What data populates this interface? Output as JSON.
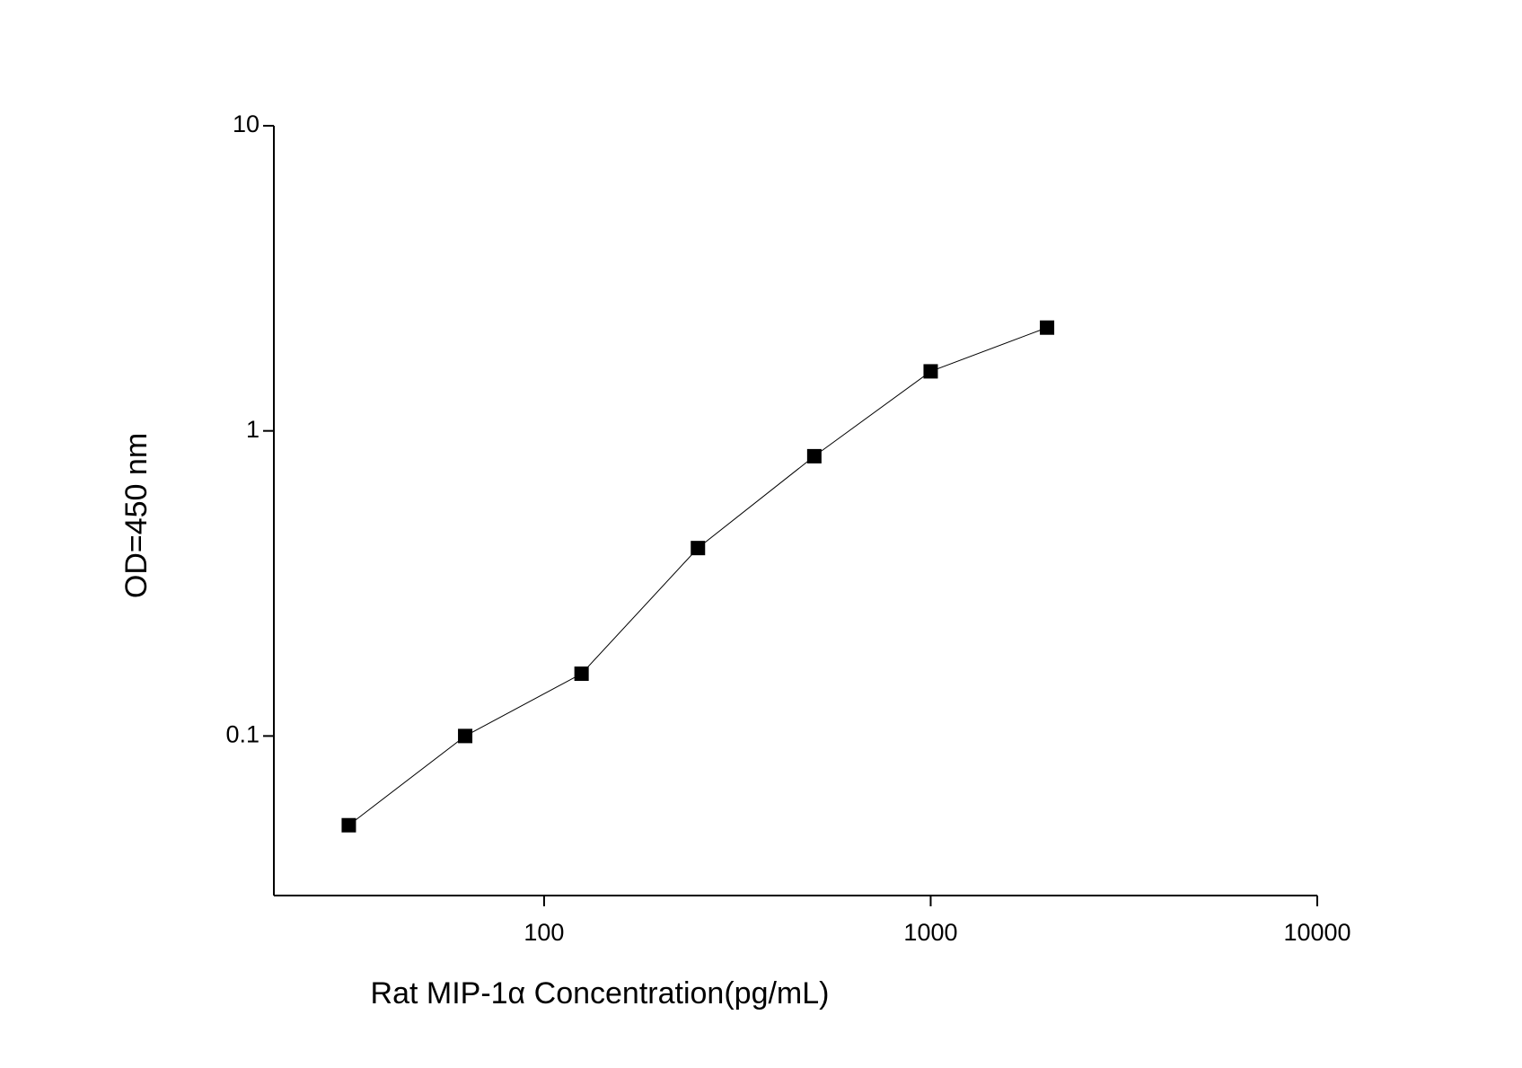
{
  "chart_data": {
    "type": "line",
    "x_label": "Rat  MIP-1α Concentration(pg/mL)",
    "y_label": "OD=450 nm",
    "x": [
      31.25,
      62.5,
      125,
      250,
      500,
      1000,
      2000
    ],
    "series": [
      {
        "color": "#000000",
        "values": [
          0.051,
          0.1,
          0.16,
          0.413,
          0.826,
          1.567,
          2.18
        ]
      }
    ],
    "xscale": "log",
    "yscale": "log",
    "xlim": [
      20,
      10000
    ],
    "ylim": [
      0.03,
      10
    ],
    "xticks": [
      100,
      1000,
      10000
    ],
    "yticks": [
      0.1,
      1,
      10
    ],
    "marker": "square",
    "grid": false
  }
}
